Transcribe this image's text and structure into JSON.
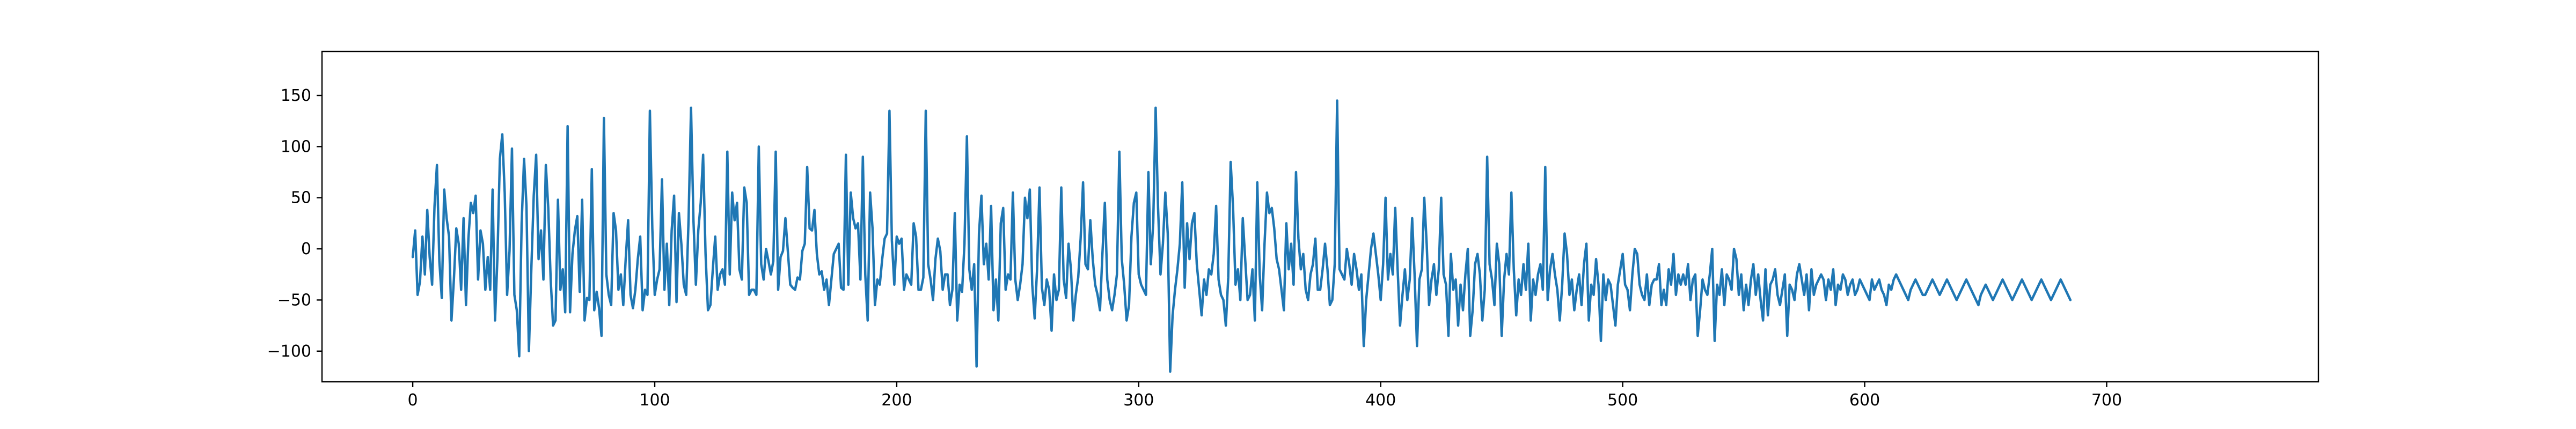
{
  "chart_data": {
    "type": "line",
    "title": "",
    "xlabel": "",
    "ylabel": "",
    "xlim": [
      -37.5,
      787.5
    ],
    "ylim": [
      -130,
      193
    ],
    "x_ticks": [
      0,
      100,
      200,
      300,
      400,
      500,
      600,
      700
    ],
    "y_ticks": [
      -100,
      -50,
      0,
      50,
      100,
      150
    ],
    "grid": false,
    "series": [
      {
        "color": "#1f77b4",
        "x_start": 0,
        "x_step": 1,
        "values": [
          -8,
          18,
          -45,
          -32,
          12,
          -25,
          38,
          -8,
          -35,
          42,
          82,
          -12,
          -48,
          58,
          30,
          12,
          -70,
          -30,
          20,
          5,
          -40,
          30,
          -55,
          10,
          45,
          35,
          52,
          -30,
          18,
          5,
          -40,
          -8,
          -40,
          58,
          -70,
          -8,
          88,
          112,
          55,
          -45,
          -2,
          98,
          -45,
          -60,
          -105,
          25,
          88,
          42,
          -100,
          -20,
          52,
          92,
          -10,
          18,
          -30,
          82,
          40,
          -30,
          -75,
          -70,
          48,
          -40,
          -20,
          -62,
          120,
          -62,
          -5,
          18,
          32,
          -42,
          48,
          -70,
          -48,
          -50,
          78,
          -60,
          -42,
          -58,
          -85,
          128,
          -25,
          -45,
          -55,
          35,
          18,
          -40,
          -25,
          -55,
          -10,
          28,
          -45,
          -58,
          -40,
          -10,
          12,
          -60,
          -40,
          -45,
          135,
          20,
          -45,
          -30,
          -20,
          68,
          -40,
          5,
          -55,
          18,
          52,
          -52,
          35,
          5,
          -35,
          -45,
          30,
          138,
          28,
          -35,
          18,
          45,
          92,
          -5,
          -60,
          -55,
          -20,
          12,
          -40,
          -25,
          -20,
          -35,
          95,
          -25,
          55,
          28,
          45,
          -20,
          -30,
          60,
          45,
          -45,
          -40,
          -40,
          -45,
          100,
          -15,
          -30,
          0,
          -12,
          -25,
          -12,
          95,
          -40,
          -8,
          -2,
          30,
          -2,
          -35,
          -38,
          -40,
          -28,
          -30,
          -2,
          5,
          80,
          20,
          18,
          38,
          -5,
          -25,
          -22,
          -40,
          -30,
          -55,
          -30,
          -5,
          0,
          5,
          -38,
          -40,
          92,
          -35,
          55,
          30,
          20,
          25,
          -30,
          90,
          -25,
          -70,
          55,
          20,
          -55,
          -30,
          -35,
          -10,
          10,
          15,
          135,
          8,
          -35,
          12,
          5,
          10,
          -40,
          -25,
          -30,
          -35,
          25,
          12,
          -40,
          -40,
          -28,
          135,
          -15,
          -30,
          -50,
          -10,
          10,
          -2,
          -40,
          -25,
          -25,
          -55,
          -40,
          35,
          -70,
          -35,
          -42,
          5,
          110,
          -20,
          -40,
          -15,
          -115,
          15,
          52,
          -15,
          5,
          -30,
          42,
          -60,
          -30,
          -70,
          25,
          40,
          -40,
          -25,
          -30,
          55,
          -30,
          -50,
          -35,
          -15,
          50,
          30,
          58,
          -35,
          -68,
          -20,
          60,
          -38,
          -55,
          -30,
          -40,
          -80,
          -25,
          -50,
          -40,
          60,
          -30,
          -48,
          5,
          -20,
          -70,
          -45,
          -28,
          10,
          65,
          -15,
          -20,
          28,
          -10,
          -35,
          -45,
          -60,
          -5,
          45,
          -30,
          -50,
          -60,
          -45,
          -25,
          95,
          -10,
          -35,
          -70,
          -55,
          12,
          45,
          55,
          -25,
          -35,
          -40,
          -45,
          75,
          -15,
          25,
          138,
          40,
          -25,
          5,
          55,
          15,
          -120,
          -65,
          -40,
          -20,
          5,
          65,
          -38,
          25,
          -10,
          25,
          35,
          -15,
          -40,
          -65,
          -30,
          -45,
          -20,
          -25,
          -5,
          42,
          -30,
          -45,
          -50,
          -75,
          -28,
          85,
          40,
          -35,
          -20,
          -50,
          30,
          -10,
          -50,
          -45,
          -20,
          -70,
          65,
          -25,
          -60,
          5,
          55,
          35,
          40,
          20,
          -10,
          -20,
          -40,
          -60,
          25,
          -20,
          5,
          -35,
          75,
          10,
          -20,
          -5,
          -40,
          -50,
          -25,
          -15,
          10,
          -40,
          -40,
          -20,
          5,
          -20,
          -55,
          -50,
          -15,
          145,
          -20,
          -25,
          -30,
          0,
          -15,
          -35,
          -5,
          -20,
          -40,
          -25,
          -95,
          -50,
          -25,
          0,
          15,
          -5,
          -25,
          -50,
          -15,
          50,
          -30,
          -5,
          -25,
          40,
          -20,
          -75,
          -45,
          -20,
          -50,
          -30,
          30,
          -25,
          -95,
          -30,
          -20,
          50,
          5,
          -55,
          -30,
          -15,
          -45,
          -20,
          50,
          -25,
          -35,
          -85,
          -5,
          -40,
          -30,
          -75,
          -35,
          -60,
          -25,
          0,
          -85,
          -60,
          -15,
          -5,
          -25,
          -70,
          -40,
          90,
          -15,
          -30,
          -55,
          5,
          -15,
          -85,
          -30,
          -5,
          -25,
          55,
          -20,
          -65,
          -30,
          -45,
          -15,
          -40,
          5,
          -70,
          -30,
          -45,
          -25,
          -15,
          -40,
          80,
          -50,
          -20,
          -5,
          -25,
          -40,
          -70,
          -35,
          15,
          -5,
          -45,
          -30,
          -60,
          -40,
          -25,
          -55,
          -15,
          5,
          -70,
          -35,
          -45,
          -10,
          -35,
          -90,
          -25,
          -50,
          -30,
          -35,
          -55,
          -75,
          -35,
          -20,
          -5,
          -35,
          -40,
          -60,
          -25,
          0,
          -5,
          -35,
          -45,
          -50,
          -25,
          -55,
          -35,
          -30,
          -30,
          -15,
          -55,
          -40,
          -55,
          -20,
          -35,
          -5,
          -45,
          -25,
          -35,
          -25,
          -35,
          -15,
          -50,
          -30,
          -25,
          -85,
          -60,
          -30,
          -40,
          -45,
          -25,
          0,
          -90,
          -35,
          -45,
          -20,
          -55,
          -25,
          -30,
          -40,
          0,
          -10,
          -45,
          -25,
          -60,
          -35,
          -55,
          -30,
          -15,
          -45,
          -25,
          -50,
          -70,
          -20,
          -65,
          -35,
          -30,
          -20,
          -45,
          -55,
          -40,
          -25,
          -85,
          -35,
          -40,
          -50,
          -25,
          -15,
          -30,
          -45,
          -25,
          -60,
          -20,
          -45,
          -35,
          -30,
          -25,
          -30,
          -50,
          -30,
          -40,
          -20,
          -55,
          -35,
          -40,
          -25,
          -30,
          -45,
          -35,
          -30,
          -45,
          -40,
          -30,
          -35,
          -40,
          -45,
          -50,
          -30,
          -40,
          -35,
          -30,
          -40,
          -45,
          -55,
          -35,
          -40,
          -30,
          -25,
          -30,
          -35,
          -40,
          -45,
          -50,
          -40,
          -35,
          -30,
          -35,
          -40,
          -45,
          -45,
          -40,
          -35,
          -30,
          -35,
          -40,
          -45,
          -40,
          -35,
          -30,
          -35,
          -40,
          -45,
          -50,
          -45,
          -40,
          -35,
          -30,
          -35,
          -40,
          -45,
          -50,
          -55,
          -45,
          -40,
          -35,
          -40,
          -45,
          -50,
          -45,
          -40,
          -35,
          -30,
          -35,
          -40,
          -45,
          -50,
          -45,
          -40,
          -35,
          -30,
          -35,
          -40,
          -45,
          -50,
          -45,
          -40,
          -35,
          -30,
          -35,
          -40,
          -45,
          -50,
          -45,
          -40,
          -35,
          -30,
          -35,
          -40,
          -45,
          -50
        ]
      }
    ]
  }
}
